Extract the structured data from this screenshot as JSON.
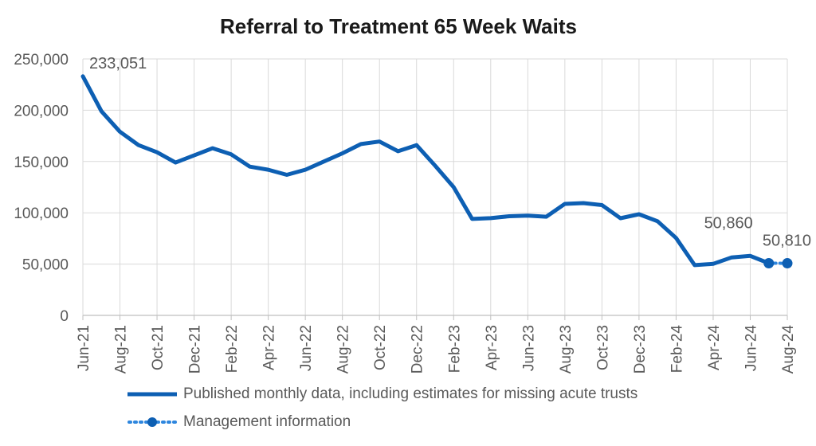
{
  "chart_data": {
    "type": "line",
    "title": "Referral to Treatment 65 Week Waits",
    "xlabel": "",
    "ylabel": "",
    "ylim": [
      0,
      250000
    ],
    "yticks": [
      0,
      50000,
      100000,
      150000,
      200000,
      250000
    ],
    "ytick_labels": [
      "0",
      "50,000",
      "100,000",
      "150,000",
      "200,000",
      "250,000"
    ],
    "grid": true,
    "legend_position": "bottom",
    "months": [
      "Jun-21",
      "Jul-21",
      "Aug-21",
      "Sep-21",
      "Oct-21",
      "Nov-21",
      "Dec-21",
      "Jan-22",
      "Feb-22",
      "Mar-22",
      "Apr-22",
      "May-22",
      "Jun-22",
      "Jul-22",
      "Aug-22",
      "Sep-22",
      "Oct-22",
      "Nov-22",
      "Dec-22",
      "Jan-23",
      "Feb-23",
      "Mar-23",
      "Apr-23",
      "May-23",
      "Jun-23",
      "Jul-23",
      "Aug-23",
      "Sep-23",
      "Oct-23",
      "Nov-23",
      "Dec-23",
      "Jan-24",
      "Feb-24",
      "Mar-24",
      "Apr-24",
      "May-24",
      "Jun-24",
      "Jul-24",
      "Aug-24"
    ],
    "xtick_labels": [
      "Jun-21",
      "Aug-21",
      "Oct-21",
      "Dec-21",
      "Feb-22",
      "Apr-22",
      "Jun-22",
      "Aug-22",
      "Oct-22",
      "Dec-22",
      "Feb-23",
      "Apr-23",
      "Jun-23",
      "Aug-23",
      "Oct-23",
      "Dec-23",
      "Feb-24",
      "Apr-24",
      "Jun-24",
      "Aug-24"
    ],
    "series": [
      {
        "name": "Published monthly data, including estimates for missing acute trusts",
        "color": "#0d5fb3",
        "style": "solid",
        "x": [
          "Jun-21",
          "Jul-21",
          "Aug-21",
          "Sep-21",
          "Oct-21",
          "Nov-21",
          "Dec-21",
          "Jan-22",
          "Feb-22",
          "Mar-22",
          "Apr-22",
          "May-22",
          "Jun-22",
          "Jul-22",
          "Aug-22",
          "Sep-22",
          "Oct-22",
          "Nov-22",
          "Dec-22",
          "Jan-23",
          "Feb-23",
          "Mar-23",
          "Apr-23",
          "May-23",
          "Jun-23",
          "Jul-23",
          "Aug-23",
          "Sep-23",
          "Oct-23",
          "Nov-23",
          "Dec-23",
          "Jan-24",
          "Feb-24",
          "Mar-24",
          "Apr-24",
          "May-24",
          "Jun-24",
          "Jul-24"
        ],
        "values": [
          233051,
          199000,
          179000,
          166000,
          159000,
          149000,
          156000,
          163000,
          157000,
          145000,
          142000,
          137000,
          142000,
          150000,
          158000,
          167000,
          169500,
          160000,
          166000,
          146000,
          125000,
          94000,
          94800,
          96700,
          97200,
          96200,
          108700,
          109500,
          107500,
          94700,
          98600,
          91800,
          75500,
          49000,
          50200,
          56500,
          58000,
          50860
        ]
      },
      {
        "name": "Management information",
        "color": "#2e86de",
        "style": "dotted",
        "x": [
          "Jul-24",
          "Aug-24"
        ],
        "values": [
          50860,
          50810
        ]
      }
    ],
    "annotations": [
      {
        "x": "Jun-21",
        "y": 233051,
        "text": "233,051"
      },
      {
        "x": "Jul-24",
        "y": 50860,
        "text": "50,860"
      },
      {
        "x": "Aug-24",
        "y": 50810,
        "text": "50,810"
      }
    ]
  }
}
